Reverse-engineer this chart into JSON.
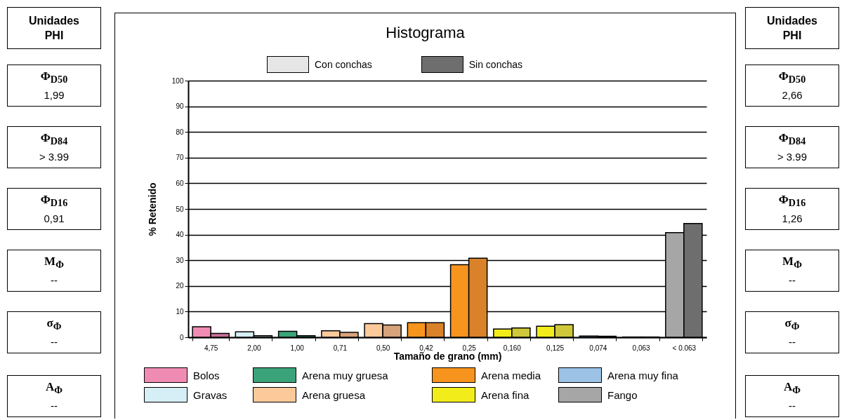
{
  "chart_data": {
    "type": "bar",
    "title": "Histograma",
    "xlabel": "Tamaño de grano (mm)",
    "ylabel": "% Retenido",
    "categories": [
      "4,75",
      "2,00",
      "1,00",
      "0,71",
      "0,50",
      "0,42",
      "0,25",
      "0,160",
      "0,125",
      "0,074",
      "0,063",
      "< 0.063"
    ],
    "series": [
      {
        "name": "Con conchas",
        "color": "#e6e6e6",
        "values": [
          4.1,
          2.1,
          2.3,
          2.5,
          5.3,
          5.7,
          28.3,
          3.2,
          4.3,
          0.5,
          0.1,
          40.8
        ],
        "colors": [
          "#f08cb4",
          "#d6eef5",
          "#3aa37a",
          "#fbc99a",
          "#fbc99a",
          "#f7941d",
          "#f7941d",
          "#f2ec1a",
          "#f2ec1a",
          "#9cc3e6",
          "#9cc3e6",
          "#a6a6a6"
        ]
      },
      {
        "name": "Sin conchas",
        "color": "#6e6e6e",
        "values": [
          1.5,
          0.6,
          0.6,
          1.9,
          4.8,
          5.7,
          30.8,
          3.6,
          4.9,
          0.4,
          0.1,
          44.3
        ],
        "colors": [
          "#c87098",
          "#9aa8ad",
          "#2a7a5a",
          "#d6a37a",
          "#d6a37a",
          "#d9822a",
          "#d9822a",
          "#cfc83a",
          "#cfc83a",
          "#7a9ab8",
          "#7a9ab8",
          "#6e6e6e"
        ]
      }
    ],
    "colors": [
      "#f08cb4",
      "#3aa37a",
      "#f7941d",
      "#9cc3e6",
      "#d6eef5",
      "#fbc99a",
      "#f2ec1a",
      "#a6a6a6"
    ],
    "annotations": [
      "Bolos",
      "Arena muy gruesa",
      "Arena media",
      "Arena muy fina",
      "Gravas",
      "Arena gruesa",
      "Arena fina",
      "Fango",
      "Unidades\nPHI",
      "Φ$_{D50}$\n1,99",
      "Φ$_{D84}$\n> 3.99",
      "Φ$_{D16}$\n0,91",
      "M$_{Φ}$\n--",
      "σ$_{Φ}$\n--",
      "A$_{Φ}$\n--",
      "Unidades\nPHI",
      "Φ$_{D50}$\n2,66",
      "Φ$_{D84}$\n> 3.99",
      "Φ$_{D16}$\n1,26",
      "M$_{Φ}$\n--",
      "σ$_{Φ}$\n--",
      "A$_{Φ}$\n--"
    ],
    "ylim": [
      0,
      100
    ],
    "yticks": [
      0,
      10,
      20,
      30,
      40,
      50,
      60,
      70,
      80,
      90,
      100
    ],
    "grid": "y",
    "legend": "top"
  }
}
